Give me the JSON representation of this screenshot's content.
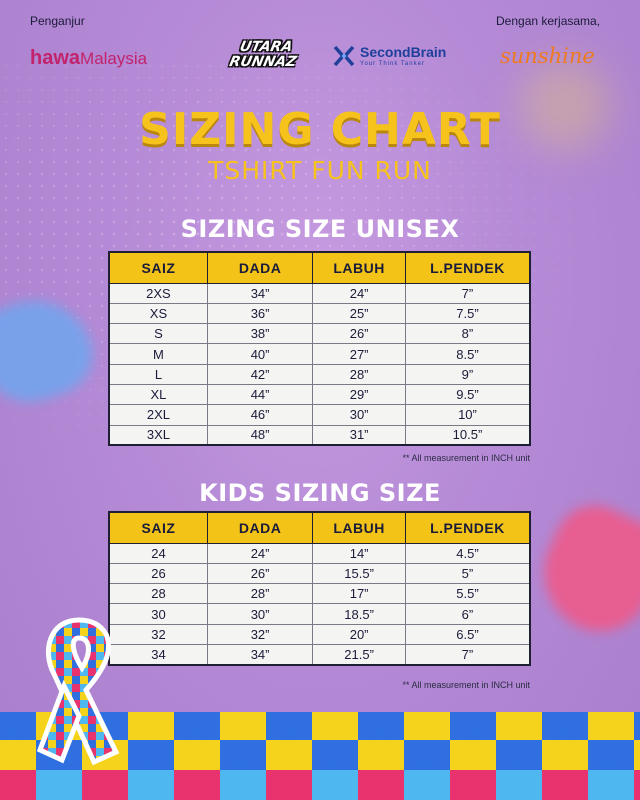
{
  "header": {
    "organizer_label": "Penganjur",
    "partner_label": "Dengan kerjasama,",
    "logos": {
      "hawa_bold": "hawa",
      "hawa_rest": "Malaysia",
      "utara_line1": "UTARA",
      "utara_line2": "RUNNAZ",
      "secondbrain_name": "SecondBrain",
      "secondbrain_tagline": "Your Think Tanker",
      "sunshine": "sunshine"
    }
  },
  "title": "SIZING CHART",
  "subtitle": "TSHIRT FUN RUN",
  "unisex": {
    "heading": "SIZING SIZE UNISEX",
    "columns": [
      "SAIZ",
      "DADA",
      "LABUH",
      "L.PENDEK"
    ],
    "rows": [
      [
        "2XS",
        "34”",
        "24”",
        "7”"
      ],
      [
        "XS",
        "36”",
        "25”",
        "7.5”"
      ],
      [
        "S",
        "38”",
        "26”",
        "8”"
      ],
      [
        "M",
        "40”",
        "27”",
        "8.5”"
      ],
      [
        "L",
        "42”",
        "28”",
        "9”"
      ],
      [
        "XL",
        "44”",
        "29”",
        "9.5”"
      ],
      [
        "2XL",
        "46”",
        "30”",
        "10”"
      ],
      [
        "3XL",
        "48”",
        "31”",
        "10.5”"
      ]
    ],
    "note": "** All measurement in INCH unit"
  },
  "kids": {
    "heading": "KIDS SIZING SIZE",
    "columns": [
      "SAIZ",
      "DADA",
      "LABUH",
      "L.PENDEK"
    ],
    "rows": [
      [
        "24",
        "24”",
        "14”",
        "4.5”"
      ],
      [
        "26",
        "26”",
        "15.5”",
        "5”"
      ],
      [
        "28",
        "28”",
        "17”",
        "5.5”"
      ],
      [
        "30",
        "30”",
        "18.5”",
        "6”"
      ],
      [
        "32",
        "32”",
        "20”",
        "6.5”"
      ],
      [
        "34",
        "34”",
        "21.5”",
        "7”"
      ]
    ],
    "note": "** All measurement in INCH unit"
  },
  "colors": {
    "background": "#b58ad6",
    "title_yellow": "#f6c21c",
    "table_header": "#f3c417",
    "puzzle_blue": "#2f6fe0",
    "puzzle_yellow": "#f5d21c",
    "puzzle_pink": "#e8336e",
    "puzzle_light_blue": "#4fb7f0"
  },
  "icons": {
    "secondbrain_mark": "brain-x-icon",
    "ribbon": "autism-puzzle-ribbon-icon",
    "band": "puzzle-pieces-band"
  }
}
